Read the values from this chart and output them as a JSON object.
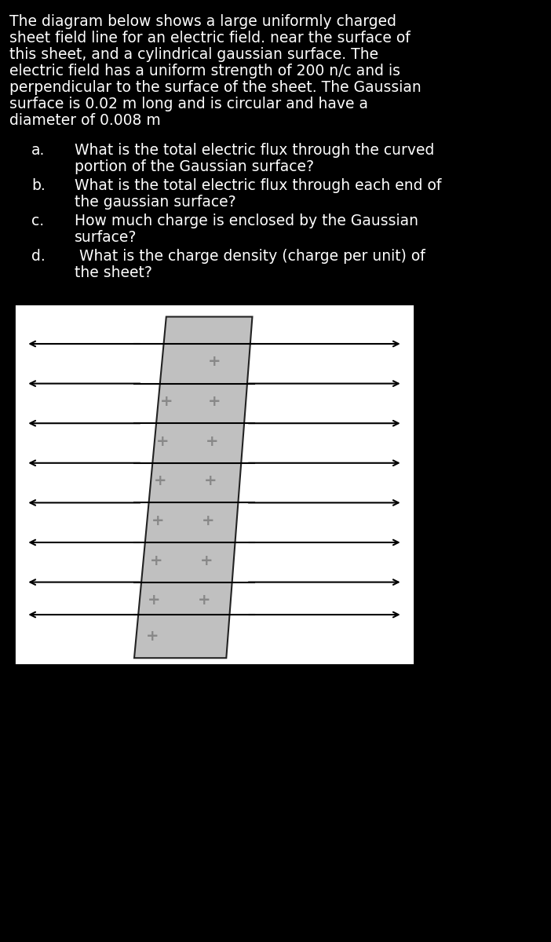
{
  "background_color": "#000000",
  "text_color": "#ffffff",
  "diagram_bg": "#ffffff",
  "sheet_color": "#c0c0c0",
  "sheet_edge_color": "#222222",
  "arrow_color": "#000000",
  "plus_color": "#888888",
  "title_lines": [
    "The diagram below shows a large uniformly charged",
    "sheet field line for an electric field. near the surface of",
    "this sheet, and a cylindrical gaussian surface. The",
    "electric field has a uniform strength of 200 n/c and is",
    "perpendicular to the surface of the sheet. The Gaussian",
    "surface is 0.02 m long and is circular and have a",
    "diameter of 0.008 m"
  ],
  "q_items": [
    {
      "label": "a.",
      "line1": "What is the total electric flux through the curved",
      "line2": "portion of the Gaussian surface?"
    },
    {
      "label": "b.",
      "line1": "What is the total electric flux through each end of",
      "line2": "the gaussian surface?"
    },
    {
      "label": "c.",
      "line1": "How much charge is enclosed by the Gaussian",
      "line2": "surface?"
    },
    {
      "label": "d.",
      "line1": " What is the charge density (charge per unit) of",
      "line2": "the sheet?"
    }
  ],
  "fig_width": 7.02,
  "fig_height": 12.0,
  "dpi": 100
}
